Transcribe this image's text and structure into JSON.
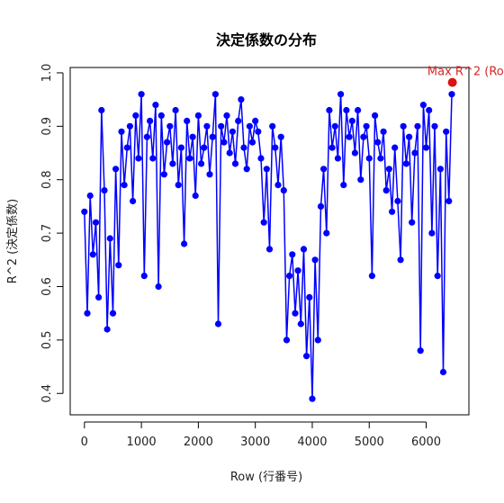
{
  "chart_data": {
    "type": "line",
    "title": "決定係数の分布",
    "xlabel": "Row (行番号)",
    "ylabel": "R^2 (決定係数)",
    "xlim": [
      -250,
      6750
    ],
    "ylim": [
      0.36,
      1.01
    ],
    "x_ticks": [
      0,
      1000,
      2000,
      3000,
      4000,
      5000,
      6000
    ],
    "y_ticks": [
      0.4,
      0.5,
      0.6,
      0.7,
      0.8,
      0.9,
      1.0
    ],
    "y_tick_labels": [
      "0.4",
      "0.5",
      "0.6",
      "0.7",
      "0.8",
      "0.9",
      "1.0"
    ],
    "grid": false,
    "series": [
      {
        "color": "#0000ff",
        "style": "line-with-points",
        "x": [
          0,
          50,
          100,
          150,
          200,
          250,
          300,
          350,
          400,
          450,
          500,
          550,
          600,
          650,
          700,
          750,
          800,
          850,
          900,
          950,
          1000,
          1050,
          1100,
          1150,
          1200,
          1250,
          1300,
          1350,
          1400,
          1450,
          1500,
          1550,
          1600,
          1650,
          1700,
          1750,
          1800,
          1850,
          1900,
          1950,
          2000,
          2050,
          2100,
          2150,
          2200,
          2250,
          2300,
          2350,
          2400,
          2450,
          2500,
          2550,
          2600,
          2650,
          2700,
          2750,
          2800,
          2850,
          2900,
          2950,
          3000,
          3050,
          3100,
          3150,
          3200,
          3250,
          3300,
          3350,
          3400,
          3450,
          3500,
          3550,
          3600,
          3650,
          3700,
          3750,
          3800,
          3850,
          3900,
          3950,
          4000,
          4050,
          4100,
          4150,
          4200,
          4250,
          4300,
          4350,
          4400,
          4450,
          4500,
          4550,
          4600,
          4650,
          4700,
          4750,
          4800,
          4850,
          4900,
          4950,
          5000,
          5050,
          5100,
          5150,
          5200,
          5250,
          5300,
          5350,
          5400,
          5450,
          5500,
          5550,
          5600,
          5650,
          5700,
          5750,
          5800,
          5850,
          5900,
          5950,
          6000,
          6050,
          6100,
          6150,
          6200,
          6250,
          6300,
          6350,
          6400,
          6450
        ],
        "y": [
          0.74,
          0.55,
          0.77,
          0.66,
          0.72,
          0.58,
          0.93,
          0.78,
          0.52,
          0.69,
          0.55,
          0.82,
          0.64,
          0.89,
          0.79,
          0.86,
          0.9,
          0.76,
          0.92,
          0.84,
          0.96,
          0.62,
          0.88,
          0.91,
          0.84,
          0.94,
          0.6,
          0.92,
          0.81,
          0.87,
          0.9,
          0.83,
          0.93,
          0.79,
          0.86,
          0.68,
          0.91,
          0.84,
          0.88,
          0.77,
          0.92,
          0.83,
          0.86,
          0.9,
          0.81,
          0.88,
          0.96,
          0.53,
          0.9,
          0.87,
          0.92,
          0.85,
          0.89,
          0.83,
          0.91,
          0.95,
          0.86,
          0.82,
          0.9,
          0.87,
          0.91,
          0.89,
          0.84,
          0.72,
          0.82,
          0.67,
          0.9,
          0.86,
          0.79,
          0.88,
          0.78,
          0.5,
          0.62,
          0.66,
          0.55,
          0.63,
          0.53,
          0.67,
          0.47,
          0.58,
          0.39,
          0.65,
          0.5,
          0.75,
          0.82,
          0.7,
          0.93,
          0.86,
          0.9,
          0.84,
          0.96,
          0.79,
          0.93,
          0.88,
          0.91,
          0.85,
          0.93,
          0.8,
          0.88,
          0.9,
          0.84,
          0.62,
          0.92,
          0.87,
          0.84,
          0.89,
          0.78,
          0.82,
          0.74,
          0.86,
          0.76,
          0.65,
          0.9,
          0.83,
          0.88,
          0.72,
          0.85,
          0.9,
          0.48,
          0.94,
          0.86,
          0.93,
          0.7,
          0.9,
          0.62,
          0.82,
          0.44,
          0.89,
          0.76,
          0.96
        ]
      }
    ],
    "annotation": {
      "label": "Max R^2 (Row",
      "x": 6460,
      "y": 0.982,
      "color": "#dd1111"
    }
  }
}
